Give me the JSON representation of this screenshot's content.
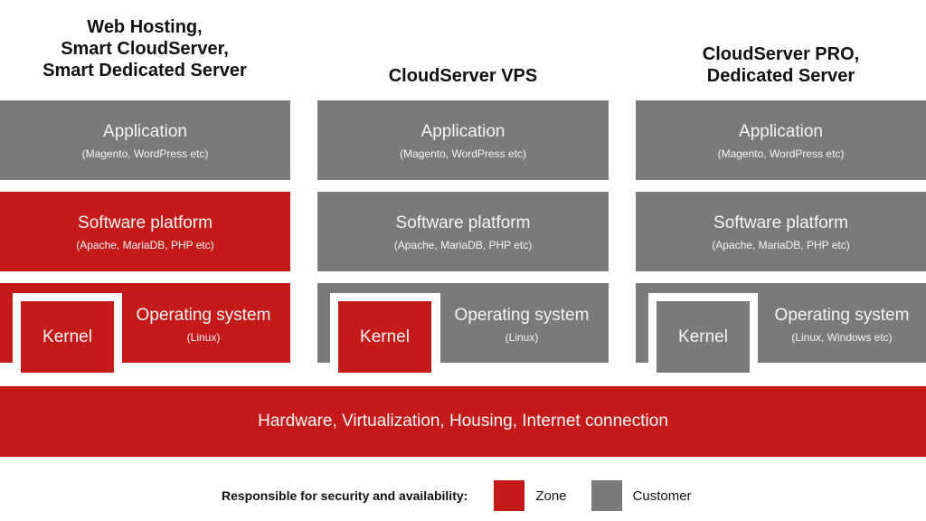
{
  "columns": [
    {
      "title": "Web Hosting,\nSmart CloudServer,\nSmart Dedicated Server",
      "application": "Application",
      "application_sub": "(Magento, WordPress etc)",
      "software": "Software platform",
      "software_sub": "(Apache, MariaDB, PHP etc)",
      "kernel": "Kernel",
      "os": "Operating system",
      "os_sub": "(Linux)"
    },
    {
      "title": "CloudServer VPS",
      "application": "Application",
      "application_sub": "(Magento, WordPress etc)",
      "software": "Software platform",
      "software_sub": "(Apache, MariaDB, PHP etc)",
      "kernel": "Kernel",
      "os": "Operating system",
      "os_sub": "(Linux)"
    },
    {
      "title": "CloudServer PRO,\nDedicated Server",
      "application": "Application",
      "application_sub": "(Magento, WordPress etc)",
      "software": "Software platform",
      "software_sub": "(Apache, MariaDB, PHP etc)",
      "kernel": "Kernel",
      "os": "Operating system",
      "os_sub": "(Linux, Windows etc)"
    }
  ],
  "hardware": "Hardware, Virtualization, Housing, Internet connection",
  "legend": {
    "label": "Responsible for security and availability:",
    "zone": "Zone",
    "customer": "Customer"
  },
  "colors": {
    "zone": "#c41a1a",
    "customer": "#7a7a7a"
  },
  "responsibility": [
    {
      "application": "customer",
      "software": "zone",
      "kernel": "zone",
      "os": "zone"
    },
    {
      "application": "customer",
      "software": "customer",
      "kernel": "zone",
      "os": "customer"
    },
    {
      "application": "customer",
      "software": "customer",
      "kernel": "customer",
      "os": "customer"
    }
  ]
}
